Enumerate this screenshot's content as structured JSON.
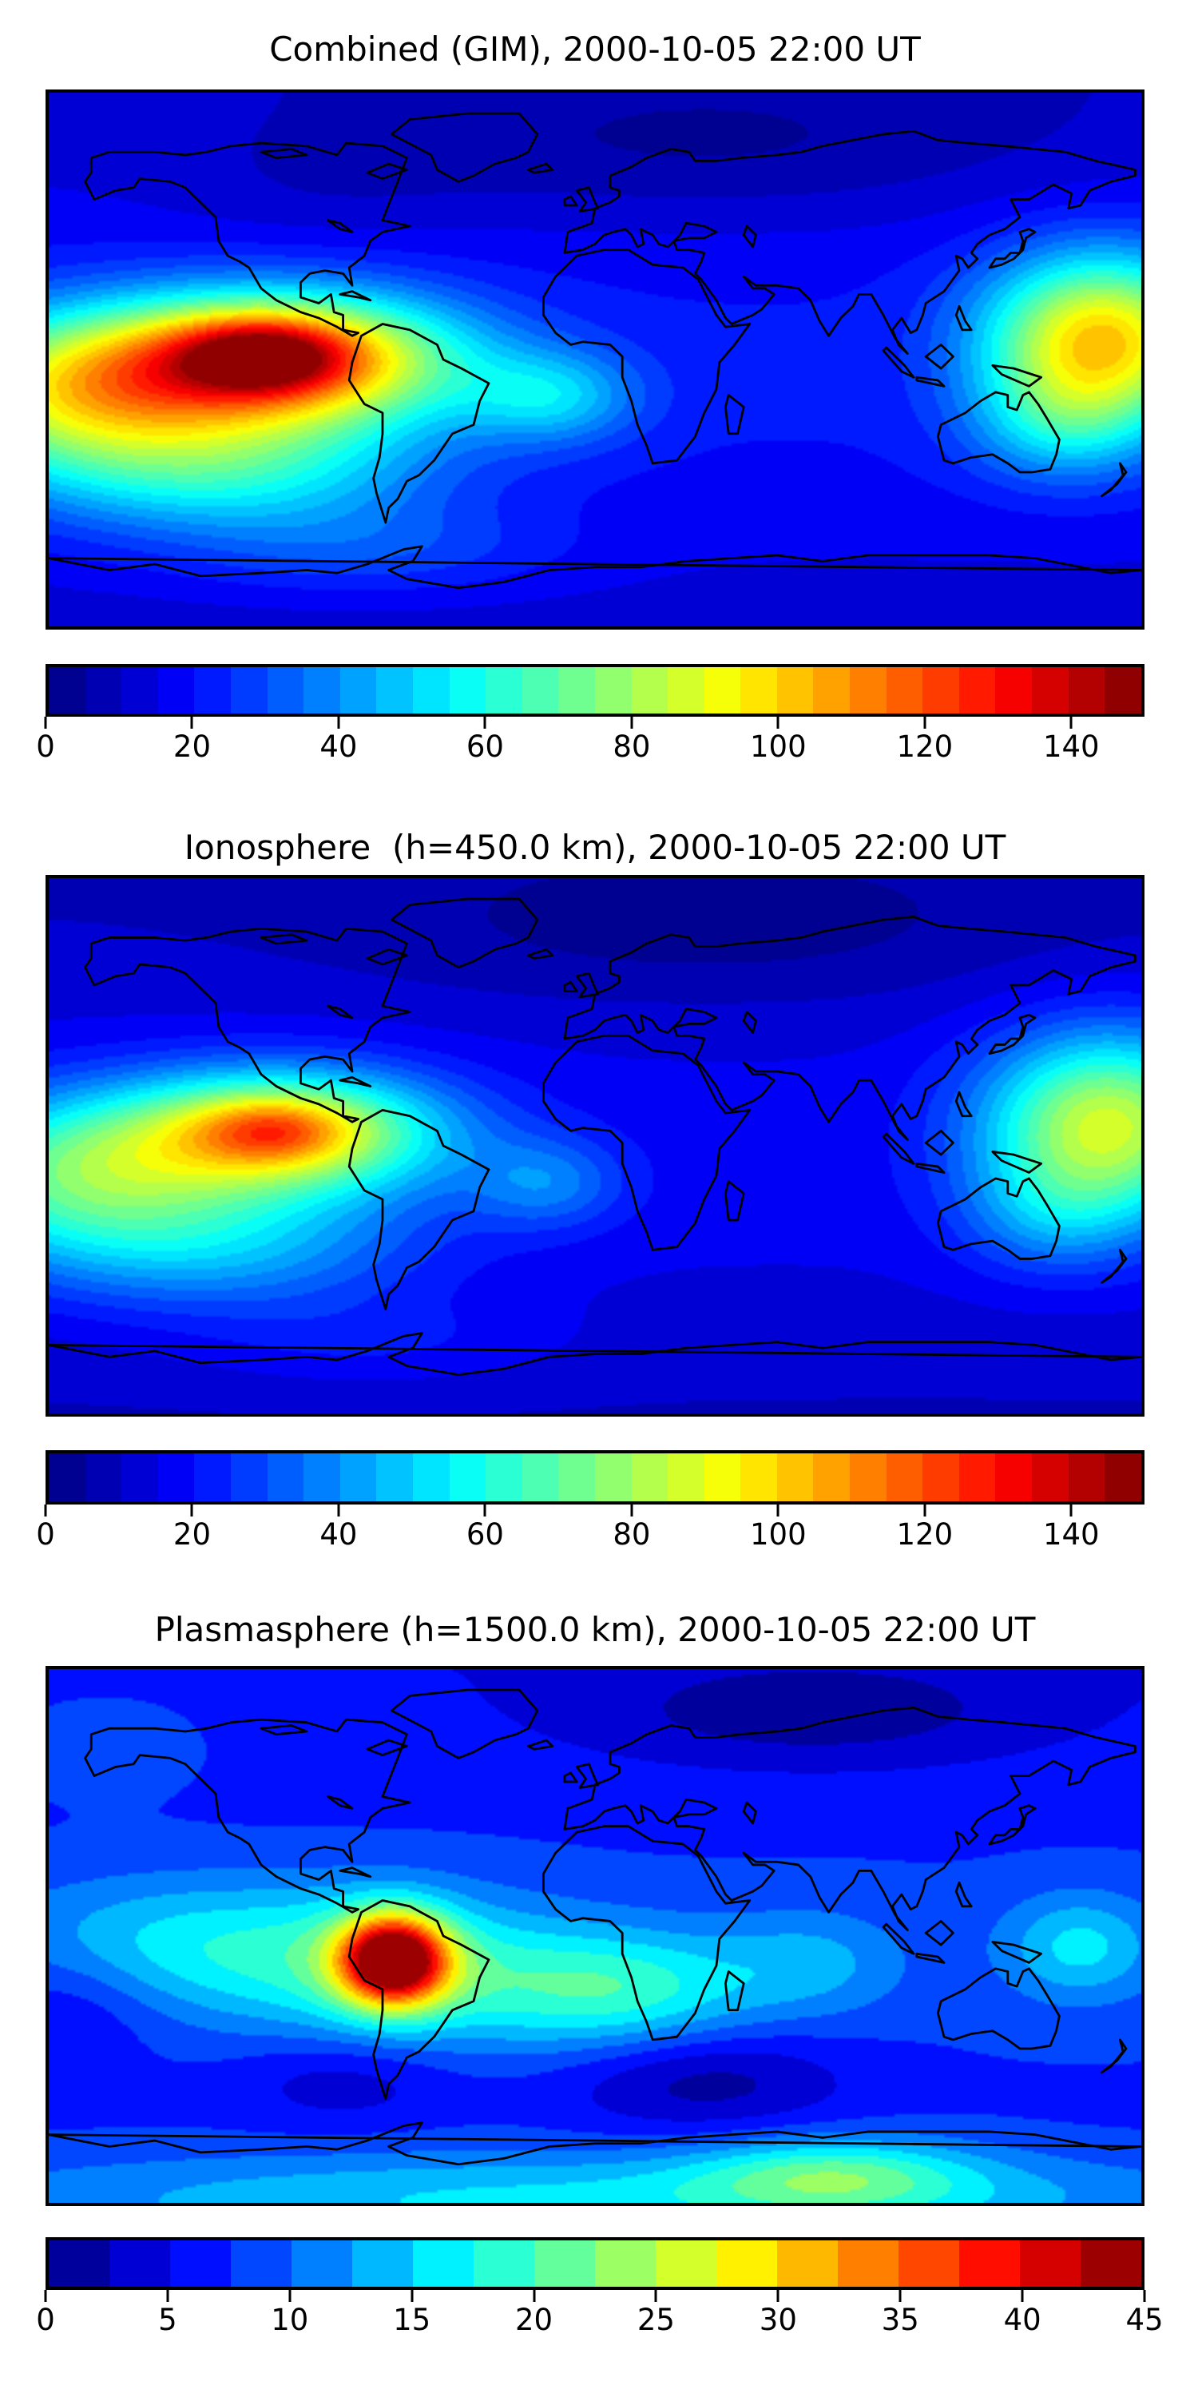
{
  "figure": {
    "background": "#ffffff",
    "colormap": "jet",
    "colormap_end_colors": {
      "low": "#000080",
      "high": "#800000"
    }
  },
  "chart_data": [
    {
      "type": "heatmap",
      "title": "Combined (GIM), 2000-10-05 22:00 UT",
      "projection": "equirectangular world map, lon -180..180, lat 90..-90",
      "colormap": "jet",
      "grid": false,
      "levels": {
        "min": 0,
        "max": 150,
        "step": 5
      },
      "colorbar_ticks": [
        0,
        20,
        40,
        60,
        80,
        100,
        120,
        140
      ],
      "peak_value_approx": 150,
      "peak_location": "equatorial eastern Pacific off Peru/Ecuador",
      "secondary_max_approx": 95,
      "secondary_location": "western equatorial Pacific near map edges",
      "field_model": {
        "base": 8,
        "lat_bands": [
          {
            "y": 0.52,
            "sy": 0.32,
            "amp": 13
          }
        ],
        "gaussians": [
          {
            "x": 0.205,
            "y": 0.5,
            "sx": 0.115,
            "sy": 0.085,
            "amp": 105
          },
          {
            "x": 0.195,
            "y": 0.49,
            "sx": 0.05,
            "sy": 0.045,
            "amp": 38
          },
          {
            "x": 0.02,
            "y": 0.56,
            "sx": 0.1,
            "sy": 0.1,
            "amp": 55
          },
          {
            "x": 0.16,
            "y": 0.7,
            "sx": 0.13,
            "sy": 0.09,
            "amp": 40
          },
          {
            "x": 0.46,
            "y": 0.57,
            "sx": 0.055,
            "sy": 0.06,
            "amp": 28
          },
          {
            "x": 0.965,
            "y": 0.46,
            "sx": 0.075,
            "sy": 0.11,
            "amp": 80
          },
          {
            "x": 0.93,
            "y": 0.62,
            "sx": 0.06,
            "sy": 0.08,
            "amp": 25
          },
          {
            "x": 0.6,
            "y": 0.1,
            "sx": 0.22,
            "sy": 0.1,
            "amp": -9
          },
          {
            "x": 0.25,
            "y": 0.18,
            "sx": 0.1,
            "sy": 0.08,
            "amp": -4
          },
          {
            "x": 0.3,
            "y": 0.86,
            "sx": 0.12,
            "sy": 0.06,
            "amp": 12
          }
        ]
      }
    },
    {
      "type": "heatmap",
      "title": "Ionosphere  (h=450.0 km), 2000-10-05 22:00 UT",
      "projection": "equirectangular world map, lon -180..180, lat 90..-90",
      "colormap": "jet",
      "grid": false,
      "levels": {
        "min": 0,
        "max": 150,
        "step": 5
      },
      "colorbar_ticks": [
        0,
        20,
        40,
        60,
        80,
        100,
        120,
        140
      ],
      "peak_value_approx": 120,
      "peak_location": "equatorial eastern Pacific off Peru/Ecuador",
      "secondary_max_approx": 85,
      "secondary_location": "western equatorial Pacific near map edges",
      "field_model": {
        "base": 6,
        "lat_bands": [
          {
            "y": 0.52,
            "sy": 0.32,
            "amp": 11
          }
        ],
        "gaussians": [
          {
            "x": 0.21,
            "y": 0.475,
            "sx": 0.105,
            "sy": 0.08,
            "amp": 80
          },
          {
            "x": 0.205,
            "y": 0.47,
            "sx": 0.045,
            "sy": 0.04,
            "amp": 22
          },
          {
            "x": 0.02,
            "y": 0.55,
            "sx": 0.1,
            "sy": 0.1,
            "amp": 45
          },
          {
            "x": 0.15,
            "y": 0.68,
            "sx": 0.13,
            "sy": 0.09,
            "amp": 30
          },
          {
            "x": 0.455,
            "y": 0.57,
            "sx": 0.05,
            "sy": 0.06,
            "amp": 20
          },
          {
            "x": 0.97,
            "y": 0.46,
            "sx": 0.08,
            "sy": 0.12,
            "amp": 70
          },
          {
            "x": 0.92,
            "y": 0.63,
            "sx": 0.06,
            "sy": 0.08,
            "amp": 18
          },
          {
            "x": 0.6,
            "y": 0.1,
            "sx": 0.22,
            "sy": 0.1,
            "amp": -8
          },
          {
            "x": 0.3,
            "y": 0.87,
            "sx": 0.12,
            "sy": 0.06,
            "amp": 8
          }
        ]
      }
    },
    {
      "type": "heatmap",
      "title": "Plasmasphere (h=1500.0 km), 2000-10-05 22:00 UT",
      "projection": "equirectangular world map, lon -180..180, lat 90..-90",
      "colormap": "jet",
      "grid": false,
      "levels": {
        "min": 0,
        "max": 45,
        "step": 2.5
      },
      "colorbar_ticks": [
        0,
        5,
        10,
        15,
        20,
        25,
        30,
        35,
        40,
        45
      ],
      "peak_value_approx": 45,
      "peak_location": "western South America (Peru/Bolivia)",
      "secondary_max_approx": 25,
      "secondary_location": "cyan-green band along Antarctic coast",
      "field_model": {
        "base": 4,
        "lat_bands": [
          {
            "y": 0.55,
            "sy": 0.35,
            "amp": 4
          }
        ],
        "gaussians": [
          {
            "x": 0.315,
            "y": 0.545,
            "sx": 0.035,
            "sy": 0.06,
            "amp": 34
          },
          {
            "x": 0.32,
            "y": 0.56,
            "sx": 0.1,
            "sy": 0.1,
            "amp": 10
          },
          {
            "x": 0.12,
            "y": 0.52,
            "sx": 0.12,
            "sy": 0.09,
            "amp": 8
          },
          {
            "x": 0.52,
            "y": 0.6,
            "sx": 0.09,
            "sy": 0.08,
            "amp": 11
          },
          {
            "x": 0.7,
            "y": 0.55,
            "sx": 0.06,
            "sy": 0.07,
            "amp": 5
          },
          {
            "x": 0.945,
            "y": 0.52,
            "sx": 0.05,
            "sy": 0.07,
            "amp": 8
          },
          {
            "x": 0.05,
            "y": 0.12,
            "sx": 0.08,
            "sy": 0.08,
            "amp": 3
          },
          {
            "x": 0.5,
            "y": 1.0,
            "sx": 0.45,
            "sy": 0.07,
            "amp": 10
          },
          {
            "x": 0.72,
            "y": 0.95,
            "sx": 0.09,
            "sy": 0.05,
            "amp": 10
          },
          {
            "x": 0.7,
            "y": 0.08,
            "sx": 0.14,
            "sy": 0.07,
            "amp": -5
          },
          {
            "x": 0.6,
            "y": 0.77,
            "sx": 0.09,
            "sy": 0.07,
            "amp": -6
          },
          {
            "x": 0.27,
            "y": 0.77,
            "sx": 0.07,
            "sy": 0.06,
            "amp": -4
          },
          {
            "x": 0.02,
            "y": 0.62,
            "sx": 0.06,
            "sy": 0.08,
            "amp": -4
          }
        ]
      }
    }
  ]
}
